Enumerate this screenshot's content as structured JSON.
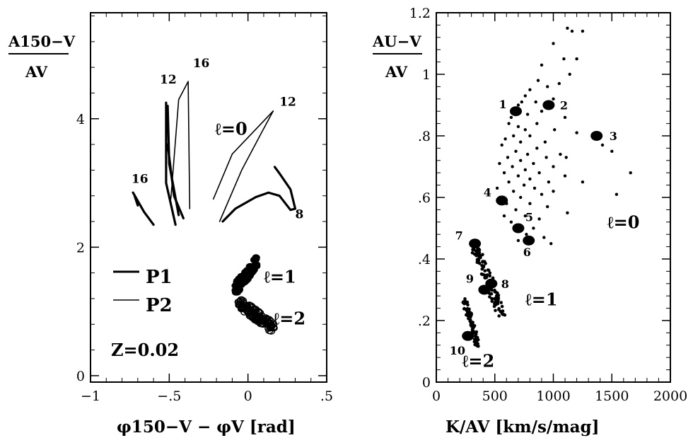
{
  "chart_data": [
    {
      "type": "line",
      "title": "",
      "xlabel": "φ150−V − φV  [rad]",
      "ylabel_top": "A150−V",
      "ylabel_bottom": "AV",
      "xlim": [
        -1,
        0.5
      ],
      "ylim": [
        -0.1,
        5.65
      ],
      "xticks": [
        -1,
        -0.5,
        0,
        0.5
      ],
      "xtick_labels": [
        "−1",
        "−.5",
        "0",
        ".5"
      ],
      "yticks": [
        0,
        2,
        4
      ],
      "ytick_labels": [
        "0",
        "2",
        "4"
      ],
      "legend": [
        {
          "name": "p1",
          "label": "P1",
          "thick": true
        },
        {
          "name": "p2",
          "label": "P2",
          "thick": false
        }
      ],
      "annotation": "Z=0.02",
      "series": [
        {
          "name": "p1",
          "thick": true,
          "points": [
            [
              -0.73,
              2.85
            ],
            [
              -0.66,
              2.55
            ],
            [
              -0.6,
              2.35
            ]
          ]
        },
        {
          "name": "p1",
          "thick": true,
          "points": [
            [
              -0.72,
              2.8
            ],
            [
              -0.7,
              2.65
            ]
          ]
        },
        {
          "name": "p1",
          "thick": true,
          "points": [
            [
              -0.52,
              4.25
            ],
            [
              -0.52,
              3.0
            ],
            [
              -0.46,
              2.35
            ]
          ]
        },
        {
          "name": "p1",
          "thick": true,
          "points": [
            [
              -0.51,
              4.2
            ],
            [
              -0.5,
              3.3
            ],
            [
              -0.44,
              2.5
            ]
          ]
        },
        {
          "name": "p1",
          "thick": true,
          "points": [
            [
              -0.51,
              3.6
            ],
            [
              -0.47,
              2.8
            ],
            [
              -0.41,
              2.45
            ]
          ]
        },
        {
          "name": "p1",
          "thick": true,
          "points": [
            [
              -0.16,
              2.4
            ],
            [
              -0.08,
              2.6
            ],
            [
              0.05,
              2.78
            ],
            [
              0.13,
              2.85
            ],
            [
              0.2,
              2.8
            ],
            [
              0.27,
              2.58
            ],
            [
              0.3,
              2.6
            ],
            [
              0.27,
              2.9
            ],
            [
              0.2,
              3.15
            ],
            [
              0.17,
              3.25
            ]
          ]
        },
        {
          "name": "p2",
          "thick": false,
          "points": [
            [
              -0.49,
              2.75
            ],
            [
              -0.44,
              4.3
            ],
            [
              -0.38,
              4.58
            ],
            [
              -0.37,
              2.6
            ]
          ]
        },
        {
          "name": "p2",
          "thick": false,
          "points": [
            [
              -0.22,
              2.75
            ],
            [
              -0.1,
              3.45
            ],
            [
              0.16,
              4.12
            ]
          ]
        },
        {
          "name": "p2",
          "thick": false,
          "points": [
            [
              -0.18,
              2.4
            ],
            [
              -0.04,
              3.2
            ],
            [
              0.09,
              3.8
            ],
            [
              0.16,
              4.12
            ]
          ]
        }
      ],
      "clusters": [
        {
          "label": "ℓ=1",
          "x_range": [
            -0.08,
            0.06
          ],
          "y_range": [
            1.35,
            1.78
          ]
        },
        {
          "label": "ℓ=2",
          "x_range": [
            -0.06,
            0.17
          ],
          "y_range": [
            0.72,
            1.15
          ]
        }
      ],
      "text_labels": [
        {
          "text": "16",
          "x": -0.74,
          "y": 3.0
        },
        {
          "text": "12",
          "x": -0.56,
          "y": 4.55
        },
        {
          "text": "16",
          "x": -0.35,
          "y": 4.8
        },
        {
          "text": "12",
          "x": 0.2,
          "y": 4.2
        },
        {
          "text": "8",
          "x": 0.3,
          "y": 2.45
        },
        {
          "text": "ℓ=0",
          "x": -0.21,
          "y": 3.75
        },
        {
          "text": "ℓ=1",
          "x": 0.1,
          "y": 1.45
        },
        {
          "text": "ℓ=2",
          "x": 0.16,
          "y": 0.8
        }
      ]
    },
    {
      "type": "scatter",
      "title": "",
      "xlabel": "K/AV  [km/s/mag]",
      "ylabel_top": "AU−V",
      "ylabel_bottom": "AV",
      "xlim": [
        0,
        2000
      ],
      "ylim": [
        0,
        1.2
      ],
      "xticks": [
        0,
        500,
        1000,
        1500,
        2000
      ],
      "xtick_labels": [
        "0",
        "500",
        "1000",
        "1500",
        "2000"
      ],
      "yticks": [
        0,
        0.2,
        0.4,
        0.6,
        0.8,
        1.0,
        1.2
      ],
      "ytick_labels": [
        "0",
        ".2",
        ".4",
        ".6",
        ".8",
        "1",
        "1.2"
      ],
      "labeled_points": [
        {
          "id": "1",
          "x": 680,
          "y": 0.88
        },
        {
          "id": "2",
          "x": 960,
          "y": 0.9
        },
        {
          "id": "3",
          "x": 1370,
          "y": 0.8
        },
        {
          "id": "4",
          "x": 560,
          "y": 0.59
        },
        {
          "id": "5",
          "x": 700,
          "y": 0.5
        },
        {
          "id": "6",
          "x": 790,
          "y": 0.46
        },
        {
          "id": "7",
          "x": 330,
          "y": 0.45
        },
        {
          "id": "8",
          "x": 470,
          "y": 0.32
        },
        {
          "id": "9",
          "x": 410,
          "y": 0.3
        },
        {
          "id": "10",
          "x": 270,
          "y": 0.15
        }
      ],
      "small_points": [
        [
          1120,
          1.15
        ],
        [
          1160,
          1.14
        ],
        [
          1250,
          1.14
        ],
        [
          1000,
          1.1
        ],
        [
          1090,
          1.05
        ],
        [
          1200,
          1.05
        ],
        [
          900,
          1.03
        ],
        [
          1140,
          1.0
        ],
        [
          870,
          0.98
        ],
        [
          1050,
          0.97
        ],
        [
          800,
          0.95
        ],
        [
          950,
          0.96
        ],
        [
          760,
          0.93
        ],
        [
          1000,
          0.92
        ],
        [
          730,
          0.91
        ],
        [
          850,
          0.91
        ],
        [
          700,
          0.9
        ],
        [
          900,
          0.88
        ],
        [
          640,
          0.86
        ],
        [
          780,
          0.87
        ],
        [
          1100,
          0.86
        ],
        [
          620,
          0.84
        ],
        [
          700,
          0.83
        ],
        [
          860,
          0.84
        ],
        [
          760,
          0.82
        ],
        [
          1010,
          0.82
        ],
        [
          660,
          0.8
        ],
        [
          800,
          0.8
        ],
        [
          1200,
          0.81
        ],
        [
          590,
          0.79
        ],
        [
          720,
          0.78
        ],
        [
          930,
          0.78
        ],
        [
          1420,
          0.77
        ],
        [
          560,
          0.77
        ],
        [
          860,
          0.76
        ],
        [
          680,
          0.75
        ],
        [
          1500,
          0.75
        ],
        [
          780,
          0.74
        ],
        [
          1060,
          0.74
        ],
        [
          610,
          0.73
        ],
        [
          720,
          0.72
        ],
        [
          940,
          0.73
        ],
        [
          1110,
          0.73
        ],
        [
          540,
          0.71
        ],
        [
          830,
          0.71
        ],
        [
          650,
          0.7
        ],
        [
          1000,
          0.7
        ],
        [
          760,
          0.69
        ],
        [
          1660,
          0.68
        ],
        [
          580,
          0.68
        ],
        [
          880,
          0.68
        ],
        [
          700,
          0.67
        ],
        [
          1100,
          0.67
        ],
        [
          800,
          0.66
        ],
        [
          620,
          0.65
        ],
        [
          960,
          0.65
        ],
        [
          1250,
          0.65
        ],
        [
          750,
          0.64
        ],
        [
          520,
          0.63
        ],
        [
          840,
          0.63
        ],
        [
          660,
          0.62
        ],
        [
          1000,
          0.62
        ],
        [
          900,
          0.61
        ],
        [
          1540,
          0.61
        ],
        [
          720,
          0.6
        ],
        [
          600,
          0.58
        ],
        [
          800,
          0.58
        ],
        [
          950,
          0.57
        ],
        [
          680,
          0.56
        ],
        [
          1120,
          0.55
        ],
        [
          580,
          0.54
        ],
        [
          760,
          0.54
        ],
        [
          880,
          0.53
        ],
        [
          640,
          0.52
        ],
        [
          830,
          0.5
        ],
        [
          770,
          0.48
        ],
        [
          920,
          0.47
        ],
        [
          980,
          0.45
        ],
        [
          700,
          0.46
        ]
      ],
      "clusters": [
        {
          "label": "ℓ=1",
          "x_range": [
            320,
            560
          ],
          "y_range": [
            0.22,
            0.45
          ]
        },
        {
          "label": "ℓ=2",
          "x_range": [
            240,
            350
          ],
          "y_range": [
            0.12,
            0.27
          ]
        }
      ],
      "text_labels": [
        {
          "text": "ℓ=0",
          "x": 1460,
          "y": 0.5
        },
        {
          "text": "ℓ=1",
          "x": 760,
          "y": 0.25
        },
        {
          "text": "ℓ=2",
          "x": 220,
          "y": 0.05
        }
      ]
    }
  ]
}
